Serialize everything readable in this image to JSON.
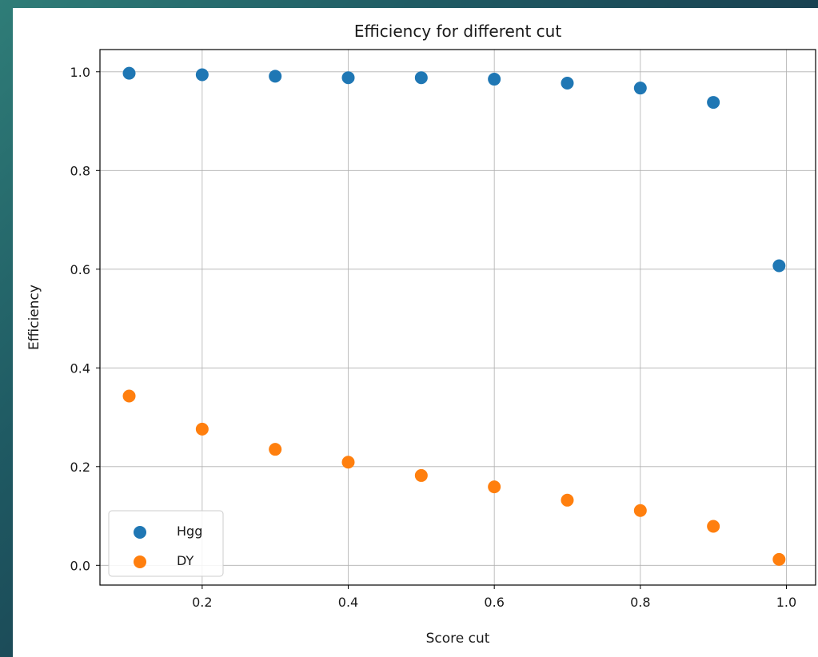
{
  "chart_data": {
    "type": "scatter",
    "title": "Efficiency for different cut",
    "xlabel": "Score cut",
    "ylabel": "Efficiency",
    "xlim": [
      0.06,
      1.04
    ],
    "ylim": [
      -0.04,
      1.045
    ],
    "xticks": [
      0.2,
      0.4,
      0.6,
      0.8,
      1.0
    ],
    "xtick_labels": [
      "0.2",
      "0.4",
      "0.6",
      "0.8",
      "1.0"
    ],
    "yticks": [
      0.0,
      0.2,
      0.4,
      0.6,
      0.8,
      1.0
    ],
    "ytick_labels": [
      "0.0",
      "0.2",
      "0.4",
      "0.6",
      "0.8",
      "1.0"
    ],
    "grid": true,
    "legend_position": "lower-left",
    "x": [
      0.1,
      0.2,
      0.3,
      0.4,
      0.5,
      0.6,
      0.7,
      0.8,
      0.9,
      0.99
    ],
    "series": [
      {
        "name": "Hgg",
        "color": "#1f77b4",
        "values": [
          0.997,
          0.994,
          0.991,
          0.988,
          0.988,
          0.985,
          0.977,
          0.967,
          0.938,
          0.607
        ]
      },
      {
        "name": "DY",
        "color": "#ff7f0e",
        "values": [
          0.343,
          0.276,
          0.235,
          0.209,
          0.182,
          0.159,
          0.132,
          0.111,
          0.079,
          0.012
        ]
      }
    ]
  }
}
